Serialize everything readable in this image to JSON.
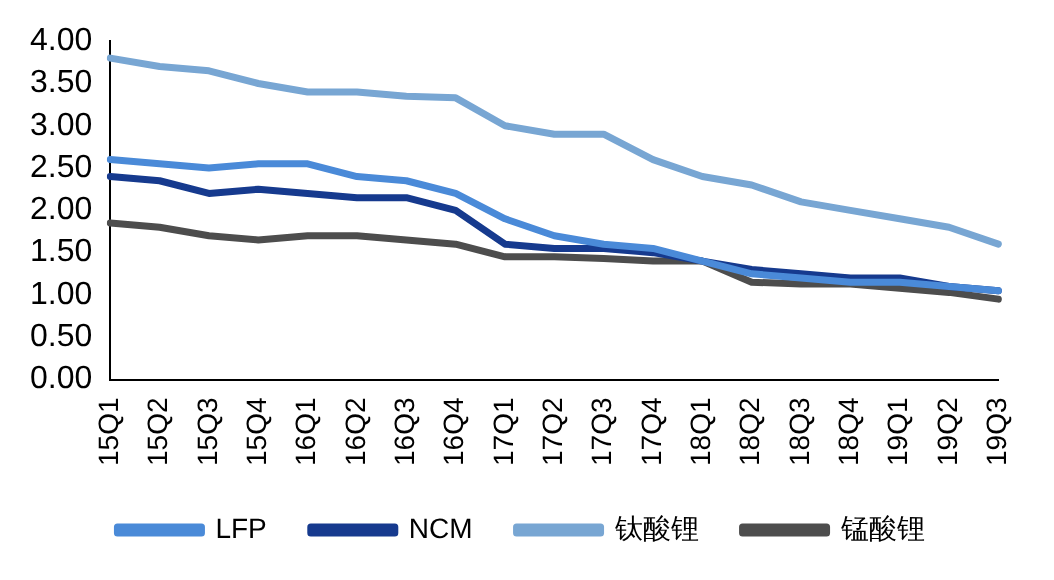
{
  "chart_data": {
    "type": "line",
    "categories": [
      "15Q1",
      "15Q2",
      "15Q3",
      "15Q4",
      "16Q1",
      "16Q2",
      "16Q3",
      "16Q4",
      "17Q1",
      "17Q2",
      "17Q3",
      "17Q4",
      "18Q1",
      "18Q2",
      "18Q3",
      "18Q4",
      "19Q1",
      "19Q2",
      "19Q3"
    ],
    "series": [
      {
        "name": "LFP",
        "color": "#4a8ad8",
        "values": [
          2.6,
          2.55,
          2.5,
          2.55,
          2.55,
          2.4,
          2.35,
          2.2,
          1.9,
          1.7,
          1.6,
          1.55,
          1.4,
          1.25,
          1.2,
          1.15,
          1.15,
          1.1,
          1.05
        ]
      },
      {
        "name": "NCM",
        "color": "#163a8e",
        "values": [
          2.4,
          2.35,
          2.2,
          2.25,
          2.2,
          2.15,
          2.15,
          2.0,
          1.6,
          1.55,
          1.55,
          1.5,
          1.4,
          1.3,
          1.25,
          1.2,
          1.2,
          1.1,
          1.05
        ]
      },
      {
        "name": "钛酸锂",
        "color": "#78a6d3",
        "values": [
          3.8,
          3.7,
          3.65,
          3.5,
          3.4,
          3.4,
          3.35,
          3.33,
          3.0,
          2.9,
          2.9,
          2.6,
          2.4,
          2.3,
          2.1,
          2.0,
          1.9,
          1.8,
          1.6
        ]
      },
      {
        "name": "锰酸锂",
        "color": "#4d4d4d",
        "values": [
          1.85,
          1.8,
          1.7,
          1.65,
          1.7,
          1.7,
          1.65,
          1.6,
          1.45,
          1.45,
          1.43,
          1.4,
          1.4,
          1.15,
          1.13,
          1.13,
          1.08,
          1.03,
          0.95
        ]
      }
    ],
    "ylim": [
      0,
      4
    ],
    "yticks": [
      {
        "value": 0,
        "label": "0.00"
      },
      {
        "value": 0.5,
        "label": "0.50"
      },
      {
        "value": 1,
        "label": "1.00"
      },
      {
        "value": 1.5,
        "label": "1.50"
      },
      {
        "value": 2,
        "label": "2.00"
      },
      {
        "value": 2.5,
        "label": "2.50"
      },
      {
        "value": 3,
        "label": "3.00"
      },
      {
        "value": 3.5,
        "label": "3.50"
      },
      {
        "value": 4,
        "label": "4.00"
      }
    ],
    "grid": false,
    "legend": "bottom",
    "marker": "none",
    "line_style": "solid"
  }
}
